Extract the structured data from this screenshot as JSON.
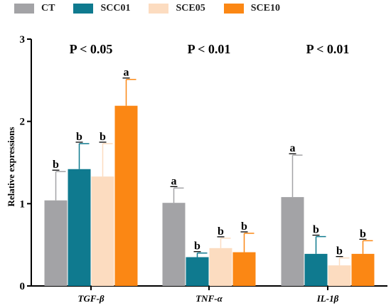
{
  "chart_data": {
    "type": "bar",
    "ylabel": "Relative expressions",
    "ylim": [
      0,
      3
    ],
    "yticks": [
      "0",
      "1",
      "2",
      "3"
    ],
    "categories": [
      "TGF-β",
      "TNF-α",
      "IL-1β"
    ],
    "pvalues": [
      "P < 0.05",
      "P < 0.01",
      "P < 0.01"
    ],
    "series": [
      {
        "name": "CT",
        "color": "#a3a3a6",
        "values": [
          1.04,
          1.01,
          1.08
        ],
        "errors": [
          0.35,
          0.18,
          0.51
        ],
        "letters": [
          "b",
          "a",
          "a"
        ]
      },
      {
        "name": "SCC01",
        "color": "#0f7a8f",
        "values": [
          1.42,
          0.35,
          0.39
        ],
        "errors": [
          0.31,
          0.05,
          0.21
        ],
        "letters": [
          "b",
          "b",
          "b"
        ]
      },
      {
        "name": "SCE05",
        "color": "#fcdcc0",
        "values": [
          1.33,
          0.46,
          0.25
        ],
        "errors": [
          0.4,
          0.12,
          0.09
        ],
        "letters": [
          "b",
          "b",
          "b"
        ]
      },
      {
        "name": "SCE10",
        "color": "#fb8714",
        "values": [
          2.19,
          0.41,
          0.39
        ],
        "errors": [
          0.32,
          0.23,
          0.16
        ],
        "letters": [
          "a",
          "b",
          "b"
        ]
      }
    ]
  }
}
